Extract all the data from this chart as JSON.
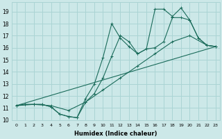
{
  "xlabel": "Humidex (Indice chaleur)",
  "bg_color": "#cce8e8",
  "grid_color": "#aad4d4",
  "line_color": "#1a6b5a",
  "xlim": [
    -0.5,
    23.5
  ],
  "ylim": [
    10,
    19.8
  ],
  "xticks": [
    0,
    1,
    2,
    3,
    4,
    5,
    6,
    7,
    8,
    9,
    10,
    11,
    12,
    13,
    14,
    15,
    16,
    17,
    18,
    19,
    20,
    21,
    22,
    23
  ],
  "yticks": [
    10,
    11,
    12,
    13,
    14,
    15,
    16,
    17,
    18,
    19
  ],
  "line1_x": [
    0,
    1,
    2,
    3,
    4,
    5,
    6,
    7,
    8,
    9,
    10,
    11,
    12,
    13,
    14,
    15,
    16,
    17,
    18,
    19,
    20,
    21,
    22,
    23
  ],
  "line1_y": [
    11.2,
    11.3,
    11.3,
    11.3,
    11.1,
    10.5,
    10.3,
    10.2,
    11.8,
    13.0,
    15.2,
    18.0,
    16.8,
    16.1,
    15.5,
    15.9,
    19.2,
    19.2,
    18.6,
    19.3,
    18.3,
    16.8,
    16.2,
    16.1
  ],
  "line2_x": [
    0,
    1,
    2,
    3,
    4,
    5,
    6,
    7,
    8,
    9,
    10,
    11,
    12,
    13,
    14,
    15,
    16,
    17,
    18,
    19,
    20,
    21,
    22,
    23
  ],
  "line2_y": [
    11.2,
    11.3,
    11.3,
    11.3,
    11.1,
    10.5,
    10.3,
    10.2,
    11.5,
    12.2,
    13.5,
    15.3,
    17.0,
    16.5,
    15.5,
    15.9,
    16.0,
    16.5,
    18.5,
    18.5,
    18.3,
    16.8,
    16.2,
    16.1
  ],
  "line3_x": [
    0,
    2,
    4,
    6,
    8,
    10,
    12,
    14,
    16,
    18,
    20,
    22,
    23
  ],
  "line3_y": [
    11.2,
    11.3,
    11.2,
    10.8,
    11.5,
    12.5,
    13.5,
    14.5,
    15.5,
    16.5,
    17.0,
    16.2,
    16.1
  ],
  "line4_x": [
    0,
    23
  ],
  "line4_y": [
    11.2,
    16.1
  ]
}
